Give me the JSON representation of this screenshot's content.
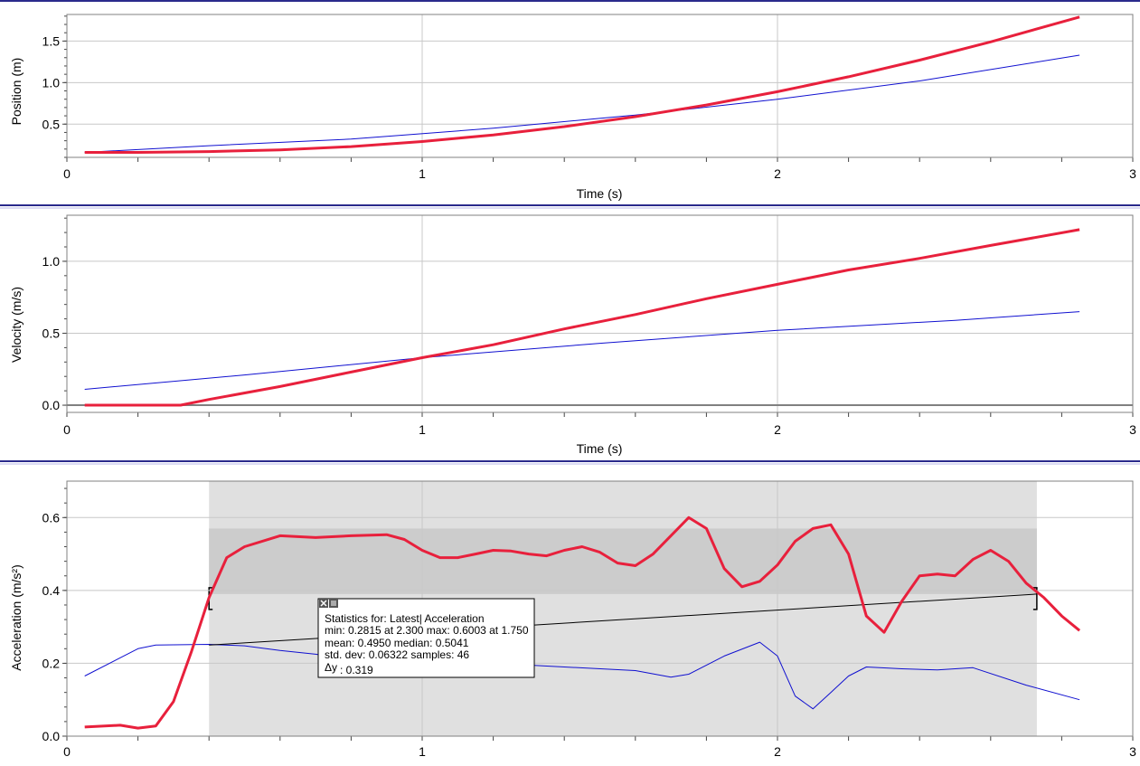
{
  "chart_data": [
    {
      "type": "line",
      "xlabel": "Time (s)",
      "ylabel": "Position (m)",
      "xlim": [
        0,
        3
      ],
      "ylim": [
        0.1,
        1.82
      ],
      "x_ticks": [
        0,
        1,
        2,
        3
      ],
      "y_ticks": [
        0.5,
        1.0,
        1.5
      ],
      "y_tick_labels": [
        "0.5",
        "1.0",
        "1.5"
      ],
      "grid": true,
      "series": [
        {
          "color": "#e8203c",
          "x": [
            0.05,
            0.2,
            0.4,
            0.6,
            0.8,
            1.0,
            1.2,
            1.4,
            1.6,
            1.8,
            2.0,
            2.2,
            2.4,
            2.6,
            2.85
          ],
          "y": [
            0.16,
            0.16,
            0.17,
            0.19,
            0.23,
            0.29,
            0.37,
            0.47,
            0.59,
            0.73,
            0.89,
            1.07,
            1.27,
            1.49,
            1.79
          ]
        },
        {
          "color": "#1010d0",
          "x": [
            0.05,
            0.4,
            0.8,
            1.2,
            1.6,
            2.0,
            2.4,
            2.85
          ],
          "y": [
            0.16,
            0.24,
            0.32,
            0.45,
            0.61,
            0.8,
            1.02,
            1.33
          ]
        }
      ]
    },
    {
      "type": "line",
      "xlabel": "Time (s)",
      "ylabel": "Velocity (m/s)",
      "xlim": [
        0,
        3
      ],
      "ylim": [
        -0.05,
        1.32
      ],
      "x_ticks": [
        0,
        1,
        2,
        3
      ],
      "y_ticks": [
        0.0,
        0.5,
        1.0
      ],
      "y_tick_labels": [
        "0.0",
        "0.5",
        "1.0"
      ],
      "grid": true,
      "series": [
        {
          "color": "#e8203c",
          "x": [
            0.05,
            0.2,
            0.32,
            0.4,
            0.6,
            0.8,
            1.0,
            1.2,
            1.4,
            1.6,
            1.8,
            2.0,
            2.2,
            2.4,
            2.6,
            2.85
          ],
          "y": [
            0.0,
            0.0,
            0.0,
            0.04,
            0.13,
            0.23,
            0.33,
            0.42,
            0.53,
            0.63,
            0.74,
            0.84,
            0.94,
            1.02,
            1.11,
            1.22
          ]
        },
        {
          "color": "#1010d0",
          "x": [
            0.05,
            0.5,
            1.0,
            1.5,
            2.0,
            2.5,
            2.85
          ],
          "y": [
            0.11,
            0.21,
            0.33,
            0.43,
            0.52,
            0.59,
            0.65
          ]
        }
      ]
    },
    {
      "type": "line",
      "xlabel": "",
      "ylabel": "Acceleration (m/s²)",
      "xlim": [
        0,
        3
      ],
      "ylim": [
        0.0,
        0.7
      ],
      "x_ticks": [
        0,
        1,
        2,
        3
      ],
      "y_ticks": [
        0.0,
        0.2,
        0.4,
        0.6
      ],
      "y_tick_labels": [
        "0.0",
        "0.2",
        "0.4",
        "0.6"
      ],
      "grid": true,
      "selection_range": [
        0.4,
        2.73
      ],
      "stats_band": [
        0.39,
        0.57
      ],
      "series": [
        {
          "color": "#e8203c",
          "x": [
            0.05,
            0.15,
            0.2,
            0.25,
            0.3,
            0.35,
            0.4,
            0.45,
            0.5,
            0.6,
            0.7,
            0.8,
            0.9,
            0.95,
            1.0,
            1.05,
            1.1,
            1.15,
            1.2,
            1.25,
            1.3,
            1.35,
            1.4,
            1.45,
            1.5,
            1.55,
            1.6,
            1.65,
            1.7,
            1.75,
            1.8,
            1.85,
            1.9,
            1.95,
            2.0,
            2.05,
            2.1,
            2.15,
            2.2,
            2.25,
            2.3,
            2.35,
            2.4,
            2.45,
            2.5,
            2.55,
            2.6,
            2.65,
            2.7,
            2.75,
            2.8,
            2.85
          ],
          "y": [
            0.025,
            0.03,
            0.022,
            0.028,
            0.095,
            0.23,
            0.38,
            0.49,
            0.52,
            0.55,
            0.545,
            0.55,
            0.553,
            0.54,
            0.51,
            0.49,
            0.49,
            0.5,
            0.51,
            0.508,
            0.5,
            0.495,
            0.51,
            0.52,
            0.505,
            0.475,
            0.468,
            0.5,
            0.55,
            0.6,
            0.57,
            0.46,
            0.41,
            0.425,
            0.47,
            0.535,
            0.57,
            0.58,
            0.5,
            0.33,
            0.285,
            0.37,
            0.44,
            0.445,
            0.44,
            0.485,
            0.51,
            0.48,
            0.42,
            0.38,
            0.33,
            0.29
          ]
        },
        {
          "color": "#1010d0",
          "x": [
            0.05,
            0.2,
            0.25,
            0.4,
            0.5,
            0.6,
            0.7,
            0.8,
            1.2,
            1.4,
            1.6,
            1.7,
            1.75,
            1.85,
            1.95,
            2.0,
            2.05,
            2.1,
            2.15,
            2.2,
            2.25,
            2.35,
            2.45,
            2.55,
            2.7,
            2.85
          ],
          "y": [
            0.165,
            0.24,
            0.25,
            0.252,
            0.248,
            0.235,
            0.225,
            0.21,
            0.2,
            0.19,
            0.18,
            0.162,
            0.17,
            0.22,
            0.258,
            0.22,
            0.11,
            0.075,
            0.12,
            0.165,
            0.19,
            0.185,
            0.182,
            0.188,
            0.14,
            0.1
          ]
        },
        {
          "color": "#000000",
          "x": [
            0.4,
            2.73
          ],
          "y": [
            0.25,
            0.39
          ]
        }
      ],
      "stats_box": {
        "close_icon": "close-icon",
        "menu_icon": "menu-icon",
        "line1": "Statistics for: Latest| Acceleration",
        "line2": "min: 0.2815 at 2.300  max: 0.6003 at 1.750",
        "line3": "mean: 0.4950  median: 0.5041",
        "line4": "std. dev: 0.06322  samples: 46",
        "delta_symbol": "Δy",
        "delta_value": ": 0.319"
      }
    }
  ]
}
